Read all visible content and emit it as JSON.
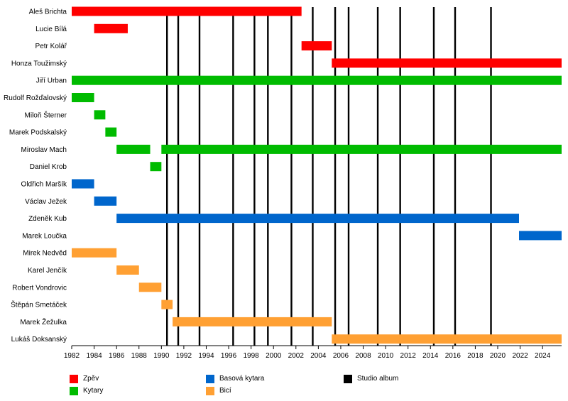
{
  "chart_data": {
    "type": "timeline",
    "xlim": [
      1982,
      2025.7
    ],
    "x_ticks": [
      "1982",
      "1984",
      "1986",
      "1988",
      "1990",
      "1992",
      "1994",
      "1996",
      "1998",
      "2000",
      "2002",
      "2004",
      "2006",
      "2008",
      "2010",
      "2012",
      "2014",
      "2016",
      "2018",
      "2020",
      "2022",
      "2024"
    ],
    "colors": {
      "Zpěv": "#ff0000",
      "Kytary": "#00bb00",
      "Basová kytara": "#0066cc",
      "Bicí": "#ffa033",
      "Studio album": "#000000"
    },
    "members": [
      {
        "name": "Aleš Brichta",
        "periods": [
          {
            "role": "Zpěv",
            "start": 1982,
            "end": 2002.5
          }
        ]
      },
      {
        "name": "Lucie Bílá",
        "periods": [
          {
            "role": "Zpěv",
            "start": 1984,
            "end": 1987
          }
        ]
      },
      {
        "name": "Petr Kolář",
        "periods": [
          {
            "role": "Zpěv",
            "start": 2002.5,
            "end": 2005.2
          }
        ]
      },
      {
        "name": "Honza Toužimský",
        "periods": [
          {
            "role": "Zpěv",
            "start": 2005.2,
            "end": 2025.7
          }
        ]
      },
      {
        "name": "Jiří Urban",
        "periods": [
          {
            "role": "Kytary",
            "start": 1982,
            "end": 2025.7
          }
        ]
      },
      {
        "name": "Rudolf Rožďalovský",
        "periods": [
          {
            "role": "Kytary",
            "start": 1982,
            "end": 1984
          }
        ]
      },
      {
        "name": "Miloň Šterner",
        "periods": [
          {
            "role": "Kytary",
            "start": 1984,
            "end": 1985
          }
        ]
      },
      {
        "name": "Marek Podskalský",
        "periods": [
          {
            "role": "Kytary",
            "start": 1985,
            "end": 1986
          }
        ]
      },
      {
        "name": "Miroslav Mach",
        "periods": [
          {
            "role": "Kytary",
            "start": 1986,
            "end": 1989
          },
          {
            "role": "Kytary",
            "start": 1990,
            "end": 2025.7
          }
        ]
      },
      {
        "name": "Daniel Krob",
        "periods": [
          {
            "role": "Kytary",
            "start": 1989,
            "end": 1990
          }
        ]
      },
      {
        "name": "Oldřich Maršík",
        "periods": [
          {
            "role": "Basová kytara",
            "start": 1982,
            "end": 1984
          }
        ]
      },
      {
        "name": "Václav Ježek",
        "periods": [
          {
            "role": "Basová kytara",
            "start": 1984,
            "end": 1986
          }
        ]
      },
      {
        "name": "Zdeněk Kub",
        "periods": [
          {
            "role": "Basová kytara",
            "start": 1986,
            "end": 2021.9
          }
        ]
      },
      {
        "name": "Marek Loučka",
        "periods": [
          {
            "role": "Basová kytara",
            "start": 2021.9,
            "end": 2025.7
          }
        ]
      },
      {
        "name": "Mirek Nedvěd",
        "periods": [
          {
            "role": "Bicí",
            "start": 1982,
            "end": 1986
          }
        ]
      },
      {
        "name": "Karel Jenčík",
        "periods": [
          {
            "role": "Bicí",
            "start": 1986,
            "end": 1988
          }
        ]
      },
      {
        "name": "Robert Vondrovic",
        "periods": [
          {
            "role": "Bicí",
            "start": 1988,
            "end": 1990
          }
        ]
      },
      {
        "name": "Štěpán Smetáček",
        "periods": [
          {
            "role": "Bicí",
            "start": 1990,
            "end": 1991
          }
        ]
      },
      {
        "name": "Marek Žežulka",
        "periods": [
          {
            "role": "Bicí",
            "start": 1991,
            "end": 2005.2
          }
        ]
      },
      {
        "name": "Lukáš Doksanský",
        "periods": [
          {
            "role": "Bicí",
            "start": 2005.2,
            "end": 2025.7
          }
        ]
      }
    ],
    "studio_albums": [
      1990.5,
      1991.5,
      1993.4,
      1996.4,
      1998.3,
      1999.5,
      2001.6,
      2003.5,
      2005.5,
      2006.7,
      2009.3,
      2011.3,
      2014.3,
      2016.2,
      2019.4
    ],
    "legend": [
      {
        "label": "Zpěv",
        "color": "#ff0000"
      },
      {
        "label": "Kytary",
        "color": "#00bb00"
      },
      {
        "label": "Basová kytara",
        "color": "#0066cc"
      },
      {
        "label": "Bicí",
        "color": "#ffa033"
      },
      {
        "label": "Studio album",
        "color": "#000000"
      }
    ]
  }
}
